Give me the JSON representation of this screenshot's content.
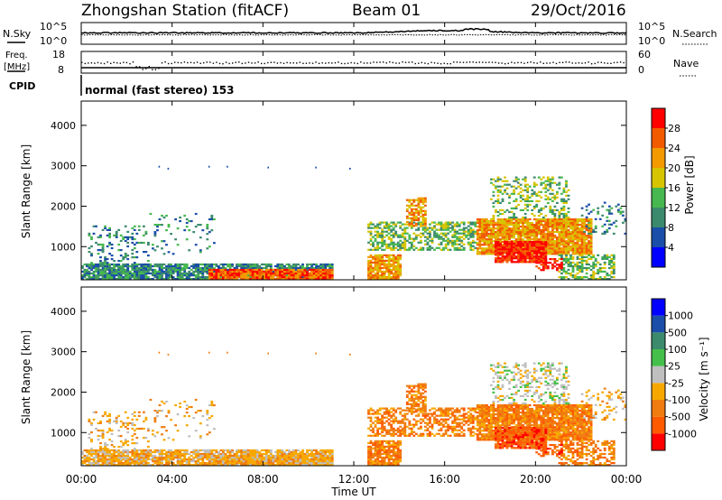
{
  "header": {
    "title": "Zhongshan Station (fitACF)",
    "beam": "Beam 01",
    "date": "29/Oct/2016"
  },
  "noise_panel": {
    "left_label": "N.Sky",
    "right_label": "N.Search",
    "left_ticks": [
      "10^5",
      "10^0"
    ],
    "right_ticks": [
      "10^5",
      "10^0"
    ]
  },
  "freq_panel": {
    "left_label_1": "Freq.",
    "left_label_2": "[MHz]",
    "right_label": "Nave",
    "left_ticks": [
      "18",
      "8"
    ],
    "right_ticks": [
      "60",
      "0"
    ]
  },
  "cpid": {
    "label": "CPID",
    "text": "normal (fast stereo) 153"
  },
  "colors": {
    "power": [
      "#0000ff",
      "#1a4ea8",
      "#3c8a6e",
      "#47b84f",
      "#d7c400",
      "#f29a00",
      "#f25a00",
      "#ff0000"
    ],
    "velocity": [
      "#ff0000",
      "#ff5a00",
      "#f07c10",
      "#f7a800",
      "#bfbfbf",
      "#44c04a",
      "#3c8a6e",
      "#1a4ea8",
      "#0000ff"
    ]
  },
  "chart_data": [
    {
      "type": "heatmap",
      "name": "power",
      "ylabel": "Slant Range [km]",
      "yticks": [
        1000,
        2000,
        3000,
        4000
      ],
      "ylim": [
        180,
        4600
      ],
      "xlim_hours": [
        0,
        24
      ],
      "colorbar_label": "Power [dB]",
      "colorbar_ticks": [
        "4",
        "8",
        "12",
        "16",
        "20",
        "24",
        "28"
      ],
      "colorbar_range": [
        0,
        32
      ]
    },
    {
      "type": "heatmap",
      "name": "velocity",
      "ylabel": "Slant Range [km]",
      "yticks": [
        1000,
        2000,
        3000,
        4000
      ],
      "ylim": [
        180,
        4600
      ],
      "xlim_hours": [
        0,
        24
      ],
      "colorbar_label": "Velocity [m s⁻¹]",
      "colorbar_ticks": [
        "-1000",
        "-500",
        "-100",
        "-25",
        "25",
        "100",
        "500",
        "1000"
      ],
      "xlabel": "Time UT",
      "xtick_labels": [
        "00:00",
        "04:00",
        "08:00",
        "12:00",
        "16:00",
        "20:00",
        "00:00"
      ]
    }
  ]
}
